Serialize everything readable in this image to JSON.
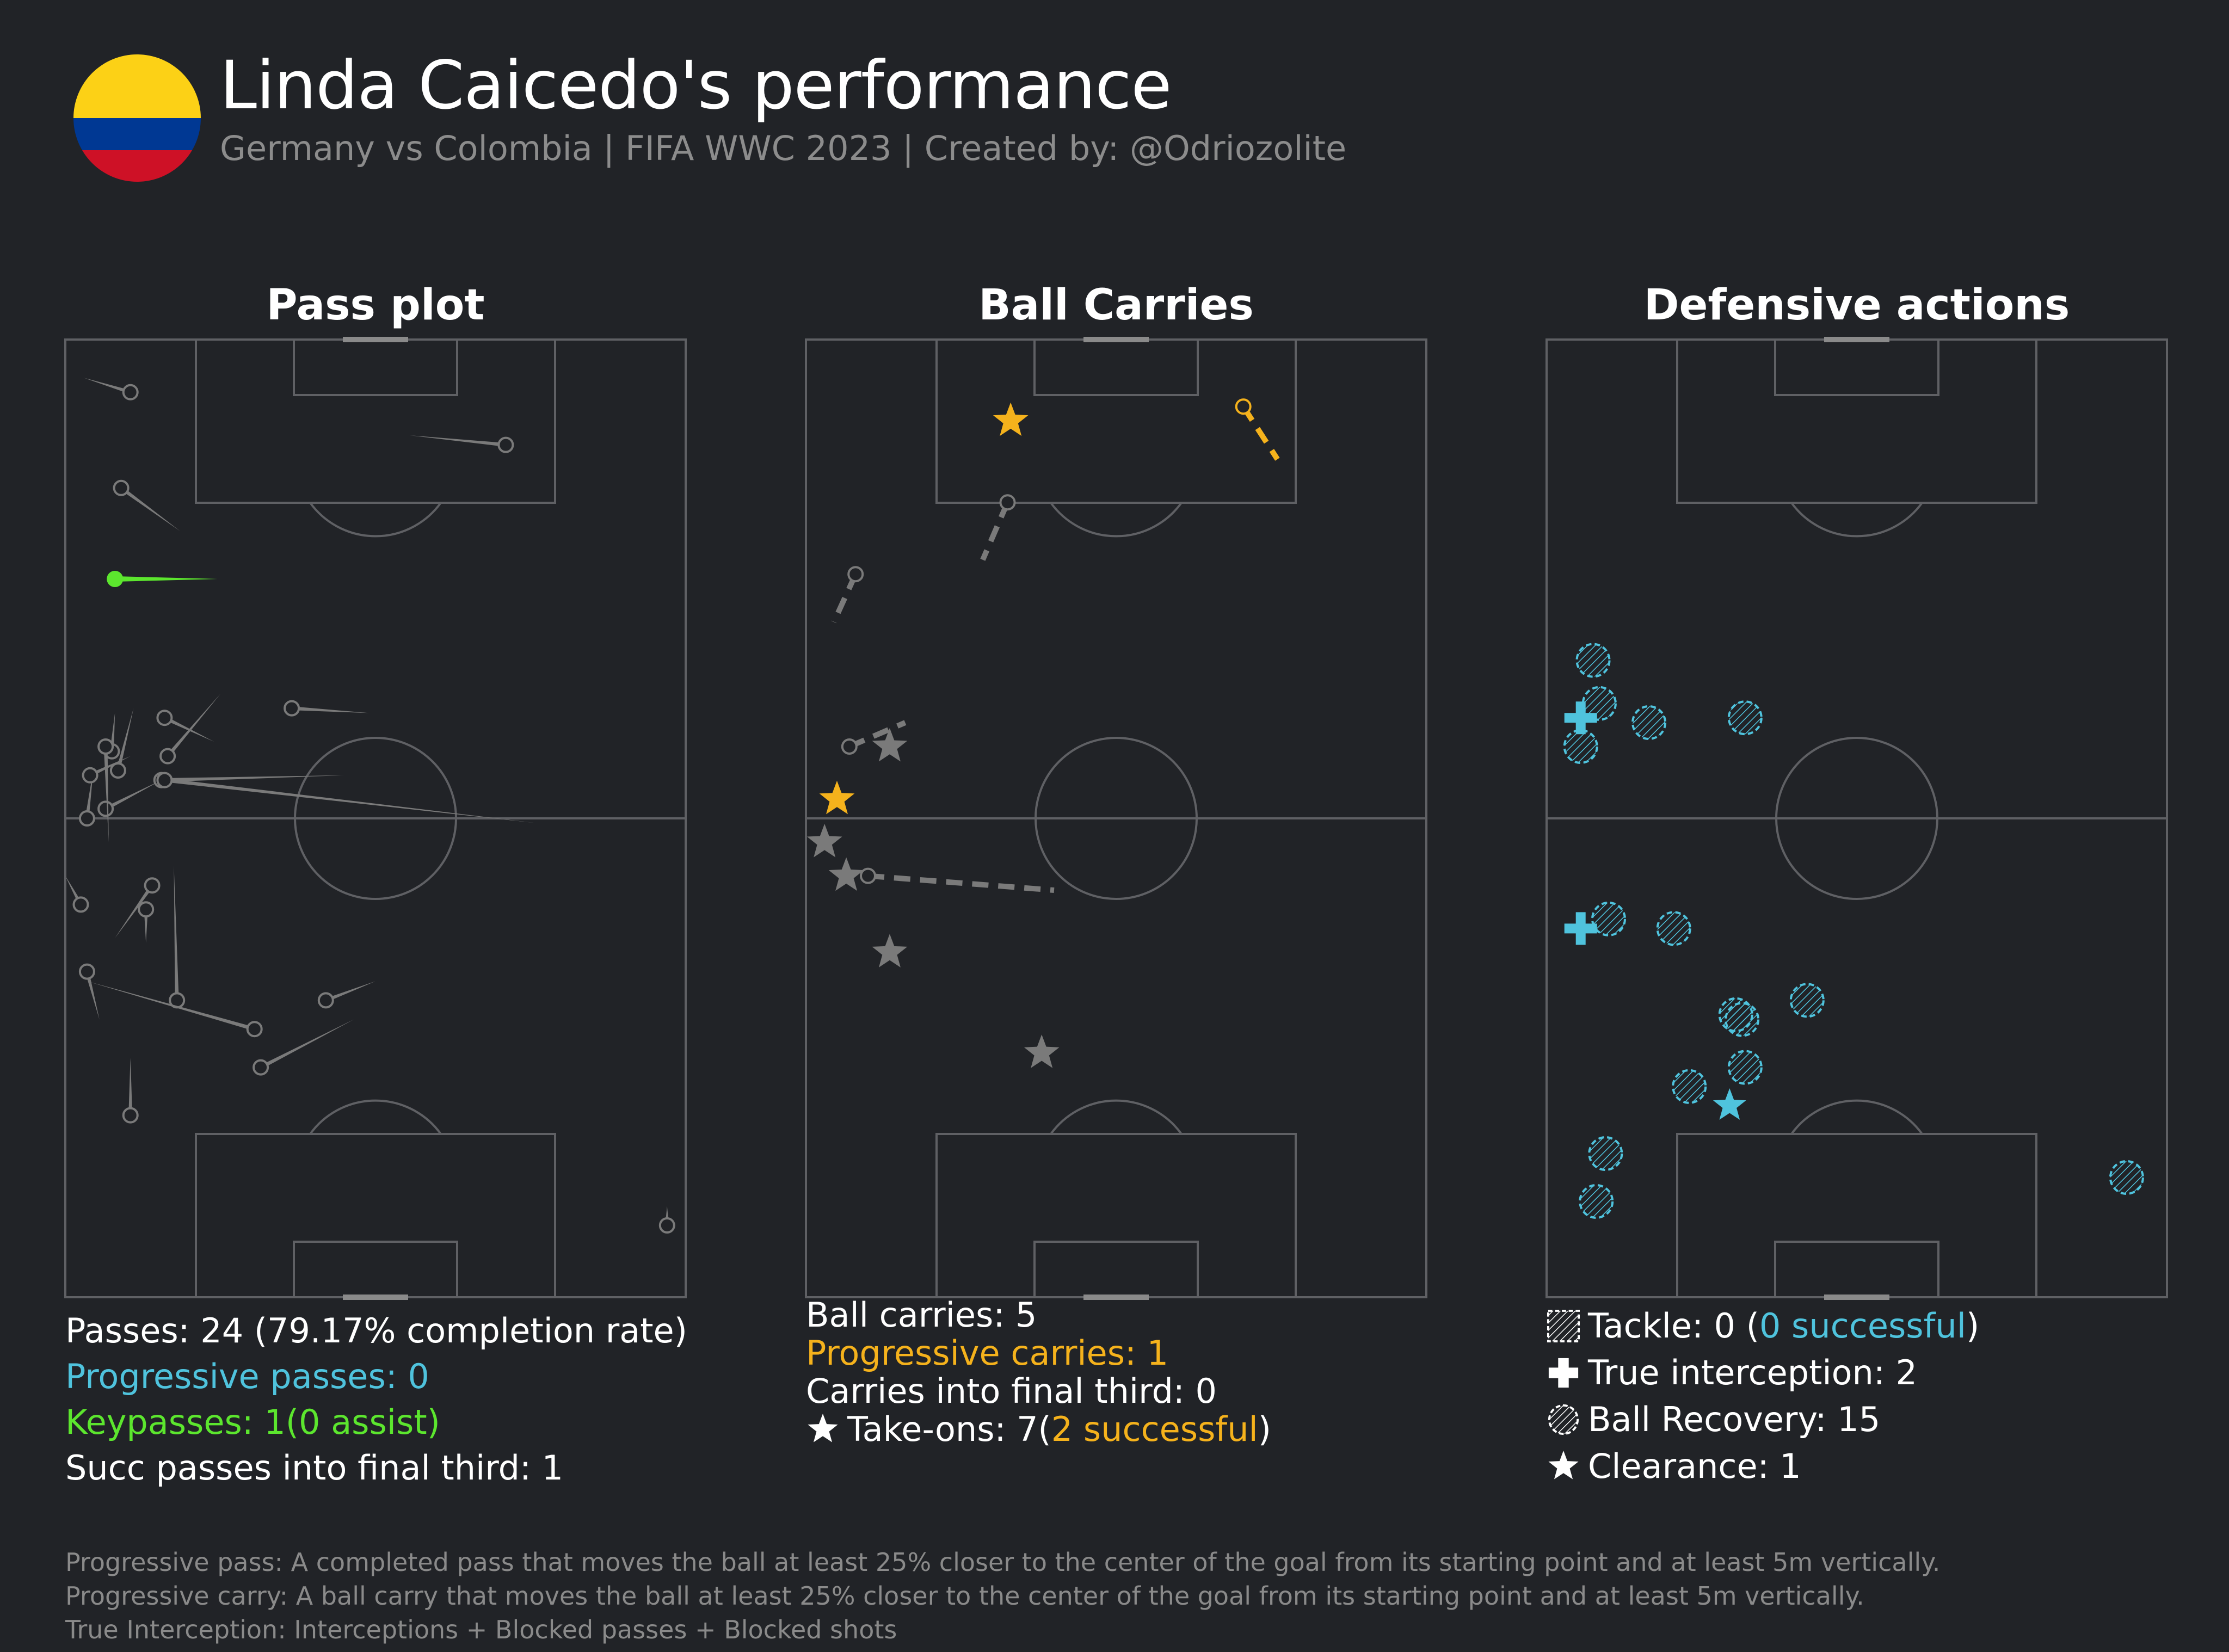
{
  "header": {
    "title": "Linda Caicedo's performance",
    "subtitle": "Germany vs Colombia | FIFA WWC 2023 | Created by: @Odriozolite",
    "flag_colors": [
      "#FCD116",
      "#003893",
      "#CE1126"
    ]
  },
  "colors": {
    "background": "#212327",
    "pitch_lines": "#5f6064",
    "neutral": "#7a7a7a",
    "progressive_pass": "#4fc3dd",
    "keypass": "#5ce62e",
    "progressive_carry": "#f5b21c",
    "defensive": "#4fc3dd"
  },
  "chart_data": [
    {
      "type": "scatter",
      "title": "Pass plot",
      "pitch": {
        "x_range": [
          0,
          100
        ],
        "y_range": [
          0,
          100
        ],
        "attacking_direction": "up"
      },
      "series": [
        {
          "name": "Passes",
          "color": "#7a7a7a",
          "segments": [
            {
              "x1": 3,
              "y1": 96,
              "x2": 10.5,
              "y2": 94.5
            },
            {
              "x1": 55.5,
              "y1": 90,
              "x2": 71,
              "y2": 89
            },
            {
              "x1": 18.5,
              "y1": 80,
              "x2": 9,
              "y2": 84.5
            },
            {
              "x1": 49,
              "y1": 61,
              "x2": 36.5,
              "y2": 61.5
            },
            {
              "x1": 25,
              "y1": 63,
              "x2": 16.5,
              "y2": 56.5
            },
            {
              "x1": 8,
              "y1": 61,
              "x2": 7.5,
              "y2": 57
            },
            {
              "x1": 24,
              "y1": 58,
              "x2": 16,
              "y2": 60.5
            },
            {
              "x1": 4.5,
              "y1": 55,
              "x2": 3.5,
              "y2": 50
            },
            {
              "x1": 11,
              "y1": 61.5,
              "x2": 8.5,
              "y2": 55
            },
            {
              "x1": 10.5,
              "y1": 56.5,
              "x2": 4,
              "y2": 54.5
            },
            {
              "x1": 15.5,
              "y1": 54,
              "x2": 6.5,
              "y2": 51
            },
            {
              "x1": 45,
              "y1": 54.5,
              "x2": 15.5,
              "y2": 54
            },
            {
              "x1": 76,
              "y1": 49.5,
              "x2": 16,
              "y2": 54
            },
            {
              "x1": 7,
              "y1": 47.5,
              "x2": 6.5,
              "y2": 57.5
            },
            {
              "x1": 0,
              "y1": 44,
              "x2": 2.5,
              "y2": 41
            },
            {
              "x1": 17.5,
              "y1": 45,
              "x2": 18,
              "y2": 31
            },
            {
              "x1": 8,
              "y1": 37.5,
              "x2": 14,
              "y2": 43
            },
            {
              "x1": 13,
              "y1": 37,
              "x2": 13,
              "y2": 40.5
            },
            {
              "x1": 3.5,
              "y1": 33,
              "x2": 30.5,
              "y2": 28
            },
            {
              "x1": 5.5,
              "y1": 29,
              "x2": 3.5,
              "y2": 34
            },
            {
              "x1": 50,
              "y1": 33,
              "x2": 42,
              "y2": 31
            },
            {
              "x1": 46.5,
              "y1": 29,
              "x2": 31.5,
              "y2": 24
            },
            {
              "x1": 10.5,
              "y1": 25,
              "x2": 10.5,
              "y2": 19
            },
            {
              "x1": 97,
              "y1": 9.5,
              "x2": 97,
              "y2": 7.5
            }
          ]
        },
        {
          "name": "Keypasses",
          "color": "#5ce62e",
          "segments": [
            {
              "x1": 24.5,
              "y1": 75,
              "x2": 8,
              "y2": 75
            }
          ]
        }
      ],
      "stats": [
        {
          "text": "Passes: 24 (79.17% completion rate)",
          "color": "white"
        },
        {
          "text": "Progressive passes: 0",
          "color": "cyan"
        },
        {
          "text": "Keypasses: 1(0 assist)",
          "color": "green"
        },
        {
          "text": "Succ passes into final third: 1",
          "color": "white"
        }
      ]
    },
    {
      "type": "scatter",
      "title": "Ball Carries",
      "pitch": {
        "x_range": [
          0,
          100
        ],
        "y_range": [
          0,
          100
        ],
        "attacking_direction": "up"
      },
      "series": [
        {
          "name": "Ball carries",
          "color": "#7a7a7a",
          "segments": [
            {
              "x1": 32.5,
              "y1": 83,
              "x2": 28.5,
              "y2": 77
            },
            {
              "x1": 8,
              "y1": 75.5,
              "x2": 4.5,
              "y2": 70.5
            },
            {
              "x1": 7,
              "y1": 57.5,
              "x2": 16,
              "y2": 60
            },
            {
              "x1": 10,
              "y1": 44,
              "x2": 40,
              "y2": 42.5
            }
          ]
        },
        {
          "name": "Progressive carries",
          "color": "#f5b21c",
          "segments": [
            {
              "x1": 70.5,
              "y1": 93,
              "x2": 76,
              "y2": 87.5
            }
          ]
        },
        {
          "name": "Take-ons (successful)",
          "color": "#f5b21c",
          "points": [
            {
              "x": 33,
              "y": 91.5
            },
            {
              "x": 5,
              "y": 52
            }
          ]
        },
        {
          "name": "Take-ons (unsuccessful)",
          "color": "#7a7a7a",
          "points": [
            {
              "x": 13.5,
              "y": 57.5
            },
            {
              "x": 3,
              "y": 47.5
            },
            {
              "x": 6.5,
              "y": 44
            },
            {
              "x": 13.5,
              "y": 36
            },
            {
              "x": 38,
              "y": 25.5
            }
          ]
        }
      ],
      "stats": [
        {
          "text": "Ball carries: 5",
          "color": "white"
        },
        {
          "text": "Progressive carries: 1",
          "color": "orange"
        },
        {
          "text": "Carries into final third: 0",
          "color": "white"
        },
        {
          "icon": "star-icon",
          "prefix": "Take-ons: 7(",
          "highlight": "2 successful",
          "suffix": ")"
        }
      ]
    },
    {
      "type": "scatter",
      "title": "Defensive actions",
      "pitch": {
        "x_range": [
          0,
          100
        ],
        "y_range": [
          0,
          100
        ],
        "attacking_direction": "up"
      },
      "series": [
        {
          "name": "Ball Recovery",
          "color": "#4fc3dd",
          "points": [
            {
              "x": 7.5,
              "y": 66.5
            },
            {
              "x": 16.5,
              "y": 60
            },
            {
              "x": 32,
              "y": 60.5
            },
            {
              "x": 8.5,
              "y": 62
            },
            {
              "x": 5.5,
              "y": 57.5
            },
            {
              "x": 10,
              "y": 39.5
            },
            {
              "x": 20.5,
              "y": 38.5
            },
            {
              "x": 42,
              "y": 31
            },
            {
              "x": 30.5,
              "y": 29.5
            },
            {
              "x": 31.5,
              "y": 29
            },
            {
              "x": 32,
              "y": 24
            },
            {
              "x": 23,
              "y": 22
            },
            {
              "x": 9.5,
              "y": 15
            },
            {
              "x": 8,
              "y": 10
            },
            {
              "x": 93.5,
              "y": 12.5
            }
          ]
        },
        {
          "name": "True interception",
          "color": "#4fc3dd",
          "points": [
            {
              "x": 5.5,
              "y": 60.5
            },
            {
              "x": 5.5,
              "y": 38.5
            }
          ]
        },
        {
          "name": "Clearance",
          "color": "#4fc3dd",
          "points": [
            {
              "x": 29.5,
              "y": 20
            }
          ]
        }
      ],
      "stats": [
        {
          "icon": "tackle-icon",
          "prefix": "Tackle: 0 (",
          "highlight": "0 successful",
          "suffix": ")"
        },
        {
          "icon": "cross-icon",
          "text": "True interception: 2"
        },
        {
          "icon": "hatched-circle-icon",
          "text": "Ball Recovery: 15"
        },
        {
          "icon": "star-icon",
          "text": "Clearance: 1"
        }
      ]
    }
  ],
  "footnotes": [
    "Progressive pass: A completed pass that moves the ball at least 25% closer to the center of the goal from its starting point and at least 5m vertically.",
    "Progressive carry: A ball carry that moves the ball at least 25% closer to the center of the goal from its starting point and at least 5m vertically.",
    "True Interception: Interceptions + Blocked passes + Blocked shots"
  ]
}
